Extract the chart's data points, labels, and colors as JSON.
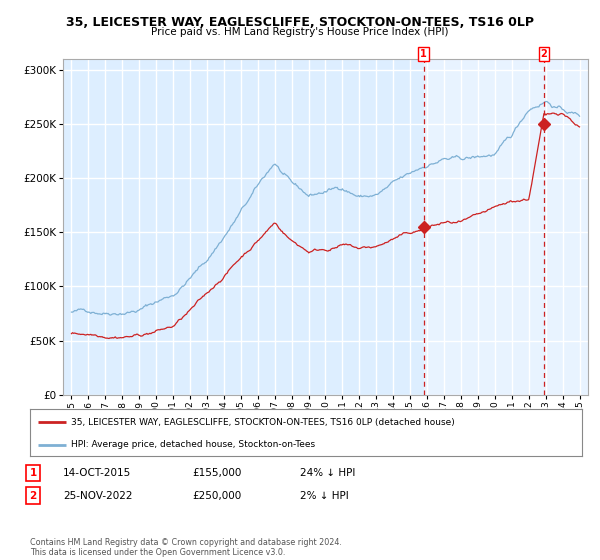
{
  "title": "35, LEICESTER WAY, EAGLESCLIFFE, STOCKTON-ON-TEES, TS16 0LP",
  "subtitle": "Price paid vs. HM Land Registry's House Price Index (HPI)",
  "bg_color": "#ddeeff",
  "grid_color": "#ffffff",
  "hpi_color": "#7eb0d4",
  "price_color": "#cc2222",
  "marker1_date_x": 2015.79,
  "marker1_price": 155000,
  "marker2_date_x": 2022.9,
  "marker2_price": 250000,
  "vline1_x": 2015.79,
  "vline2_x": 2022.9,
  "shade_start": 2015.79,
  "shade_end": 2025.5,
  "ylim": [
    0,
    310000
  ],
  "xlim": [
    1994.5,
    2025.5
  ],
  "legend_line1": "35, LEICESTER WAY, EAGLESCLIFFE, STOCKTON-ON-TEES, TS16 0LP (detached house)",
  "legend_line2": "HPI: Average price, detached house, Stockton-on-Tees",
  "note1_label": "1",
  "note1_date": "14-OCT-2015",
  "note1_price": "£155,000",
  "note1_hpi": "24% ↓ HPI",
  "note2_label": "2",
  "note2_date": "25-NOV-2022",
  "note2_price": "£250,000",
  "note2_hpi": "2% ↓ HPI",
  "copyright": "Contains HM Land Registry data © Crown copyright and database right 2024.\nThis data is licensed under the Open Government Licence v3.0."
}
